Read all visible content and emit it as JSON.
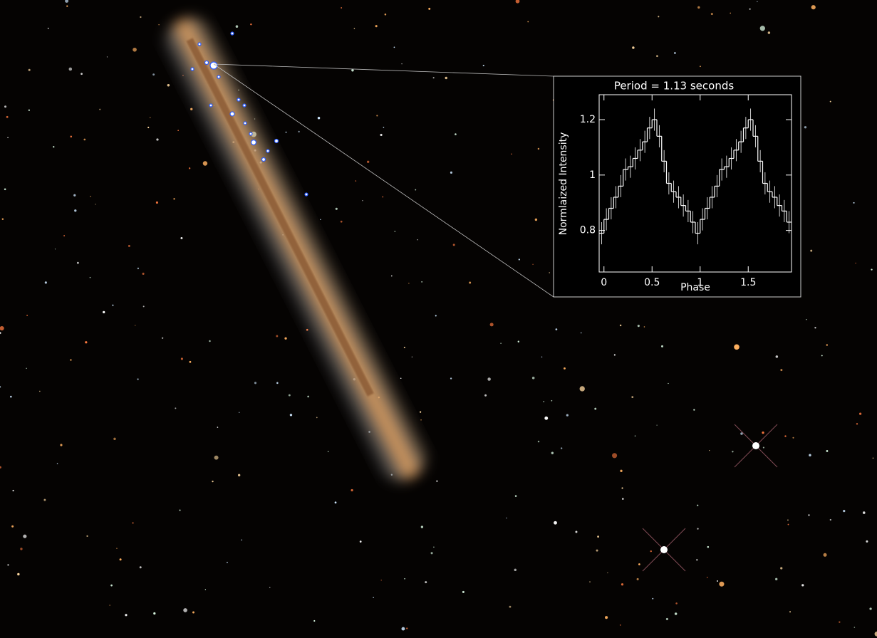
{
  "chart_data": {
    "type": "step",
    "title": "Period = 1.13 seconds",
    "x_label": "Phase",
    "y_label": "Normlaized Intensity",
    "x": [
      -0.025,
      0.025,
      0.075,
      0.125,
      0.175,
      0.225,
      0.275,
      0.325,
      0.375,
      0.425,
      0.475,
      0.525,
      0.575,
      0.625,
      0.675,
      0.725,
      0.775,
      0.825,
      0.875,
      0.925,
      0.975,
      1.025,
      1.075,
      1.125,
      1.175,
      1.225,
      1.275,
      1.325,
      1.375,
      1.425,
      1.475,
      1.525,
      1.575,
      1.625,
      1.675,
      1.725,
      1.775,
      1.825,
      1.875,
      1.925
    ],
    "bin_width": 0.05,
    "values": [
      0.79,
      0.84,
      0.88,
      0.92,
      0.96,
      1.02,
      1.03,
      1.06,
      1.09,
      1.12,
      1.17,
      1.2,
      1.14,
      1.05,
      0.97,
      0.94,
      0.92,
      0.89,
      0.87,
      0.83,
      0.79,
      0.84,
      0.88,
      0.92,
      0.96,
      1.02,
      1.03,
      1.06,
      1.09,
      1.12,
      1.17,
      1.2,
      1.14,
      1.05,
      0.97,
      0.94,
      0.92,
      0.89,
      0.87,
      0.83
    ],
    "errors": [
      0.04,
      0.04,
      0.04,
      0.04,
      0.04,
      0.04,
      0.04,
      0.04,
      0.04,
      0.04,
      0.04,
      0.04,
      0.04,
      0.04,
      0.04,
      0.04,
      0.04,
      0.04,
      0.04,
      0.04,
      0.04,
      0.04,
      0.04,
      0.04,
      0.04,
      0.04,
      0.04,
      0.04,
      0.04,
      0.04,
      0.04,
      0.04,
      0.04,
      0.04,
      0.04,
      0.04,
      0.04,
      0.04,
      0.04,
      0.04
    ],
    "color": "#ffffff",
    "xlim": [
      -0.05,
      1.95
    ],
    "ylim": [
      0.65,
      1.29
    ],
    "xticks": [
      0,
      0.5,
      1,
      1.5
    ],
    "yticks": [
      0.8,
      1,
      1.2
    ]
  }
}
